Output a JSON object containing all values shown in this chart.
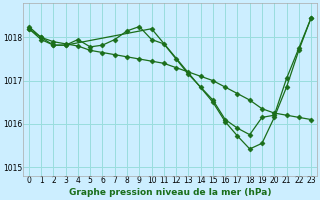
{
  "title": "Graphe pression niveau de la mer (hPa)",
  "background_color": "#cceeff",
  "grid_color": "#99dddd",
  "line_color": "#1a6e1a",
  "xlim": [
    -0.5,
    23.5
  ],
  "ylim": [
    1014.8,
    1018.8
  ],
  "yticks": [
    1015,
    1016,
    1017,
    1018
  ],
  "xticks": [
    0,
    1,
    2,
    3,
    4,
    5,
    6,
    7,
    8,
    9,
    10,
    11,
    12,
    13,
    14,
    15,
    16,
    17,
    18,
    19,
    20,
    21,
    22,
    23
  ],
  "lines": [
    {
      "x": [
        0,
        1,
        2,
        3,
        4,
        5,
        6,
        7,
        8,
        9,
        10,
        11,
        12,
        13,
        14,
        15,
        16,
        17,
        18,
        19,
        20,
        21,
        22,
        23
      ],
      "y": [
        1018.25,
        1018.0,
        1017.82,
        1017.82,
        1017.95,
        1017.78,
        1017.82,
        1017.95,
        1018.15,
        1018.25,
        1017.95,
        1017.85,
        1017.5,
        1017.15,
        1016.85,
        1016.55,
        1016.1,
        1015.9,
        1015.75,
        1016.15,
        1016.2,
        1017.05,
        1017.75,
        1018.45
      ]
    },
    {
      "x": [
        0,
        1,
        2,
        3,
        4,
        5,
        6,
        7,
        8,
        9,
        10,
        11,
        12,
        13,
        14,
        15,
        16,
        17,
        18,
        19,
        20,
        21,
        22,
        23
      ],
      "y": [
        1018.2,
        1018.0,
        1017.9,
        1017.85,
        1017.8,
        1017.7,
        1017.65,
        1017.6,
        1017.55,
        1017.5,
        1017.45,
        1017.4,
        1017.3,
        1017.2,
        1017.1,
        1017.0,
        1016.85,
        1016.7,
        1016.55,
        1016.35,
        1016.25,
        1016.2,
        1016.15,
        1016.1
      ]
    },
    {
      "x": [
        0,
        1,
        2,
        3,
        10,
        15,
        16,
        17,
        18,
        19,
        20,
        21,
        22,
        23
      ],
      "y": [
        1018.2,
        1017.95,
        1017.82,
        1017.82,
        1018.2,
        1016.5,
        1016.05,
        1015.72,
        1015.42,
        1015.55,
        1016.15,
        1016.85,
        1017.7,
        1018.45
      ]
    }
  ]
}
